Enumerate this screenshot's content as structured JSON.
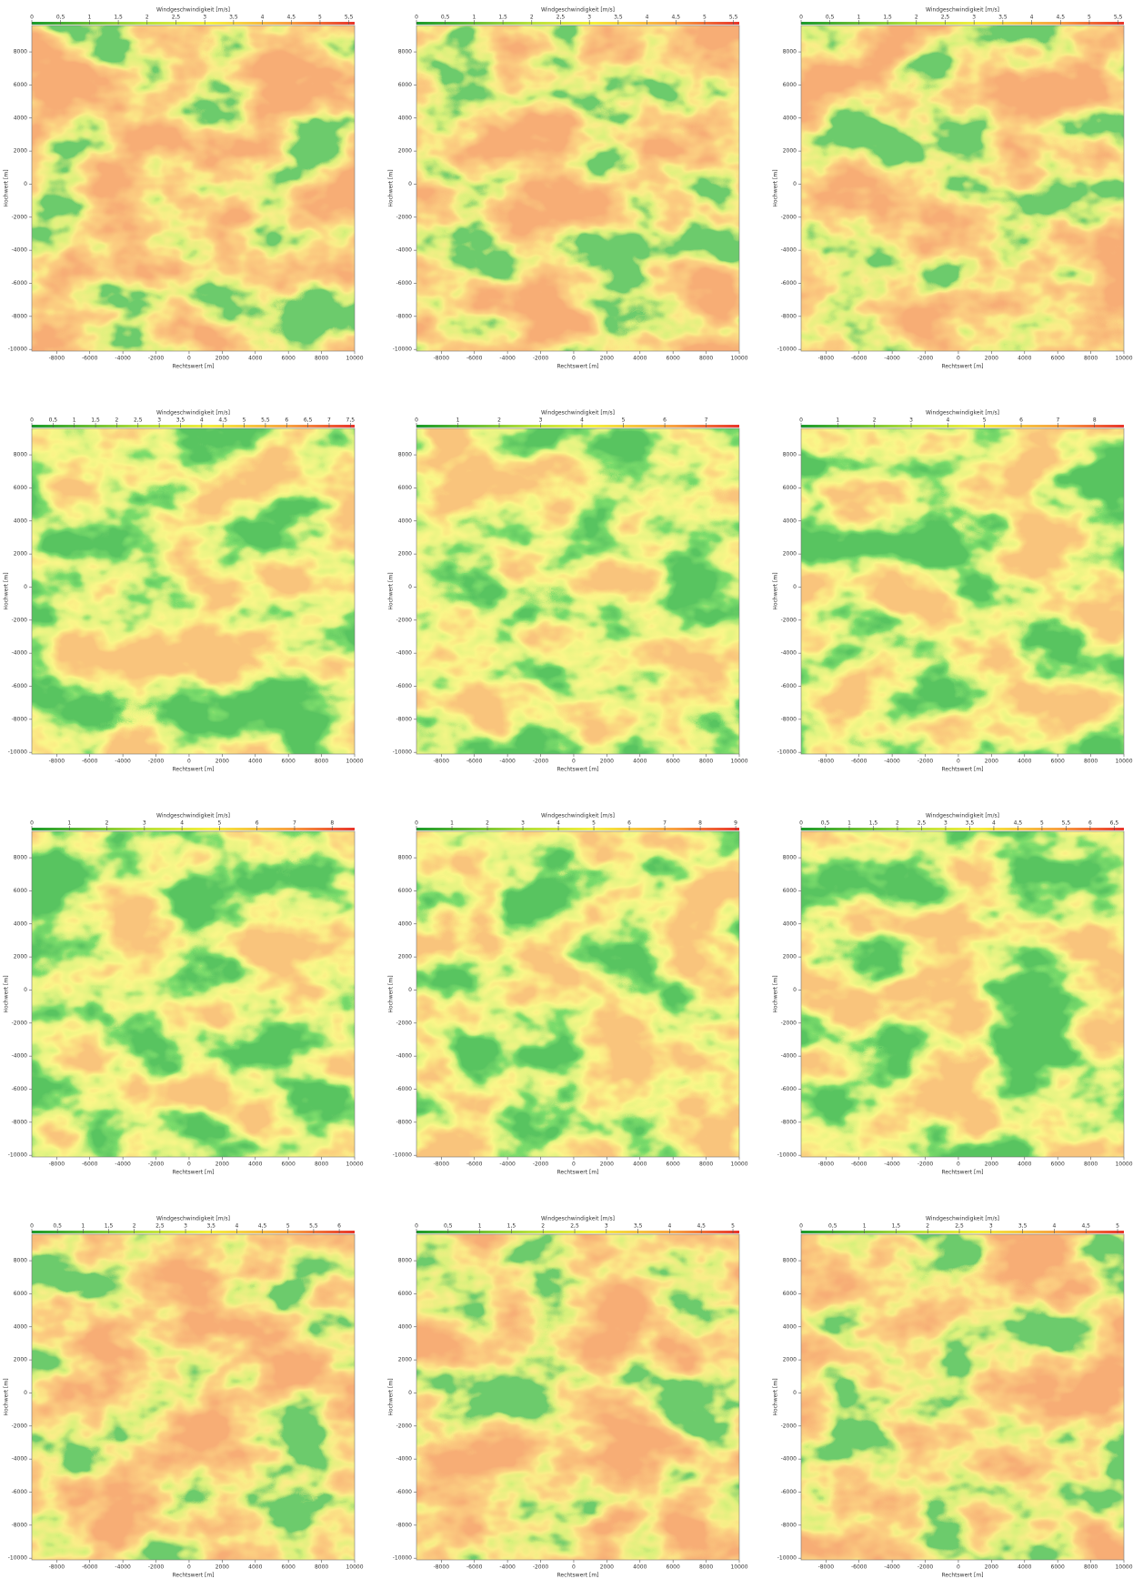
{
  "chart_data": [
    {
      "type": "heatmap",
      "title": "Windgeschwindigkeit [m/s]",
      "xlabel": "Rechtswert [m]",
      "ylabel": "Hochwert [m]",
      "xlim": [
        -9500,
        10000
      ],
      "ylim": [
        -10100,
        9600
      ],
      "xticks": [
        -8000,
        -6000,
        -4000,
        -2000,
        0,
        2000,
        4000,
        6000,
        8000,
        10000
      ],
      "yticks": [
        8000,
        6000,
        4000,
        2000,
        0,
        -2000,
        -4000,
        -6000,
        -8000,
        -10000
      ],
      "clim": [
        0,
        5.6
      ],
      "cticks": [
        0,
        {
          "value": 0.5,
          "label": "0,5"
        },
        1,
        {
          "value": 1.5,
          "label": "1,5"
        },
        2,
        {
          "value": 2.5,
          "label": "2,5"
        },
        3,
        {
          "value": 3.5,
          "label": "3,5"
        },
        4,
        {
          "value": 4.5,
          "label": "4,5"
        },
        5,
        {
          "value": 5.5,
          "label": "5,5"
        }
      ]
    },
    {
      "type": "heatmap",
      "title": "Windgeschwindigkeit [m/s]",
      "xlabel": "Rechtswert [m]",
      "ylabel": "Hochwert [m]",
      "xlim": [
        -9500,
        10000
      ],
      "ylim": [
        -10100,
        9600
      ],
      "xticks": [
        -8000,
        -6000,
        -4000,
        -2000,
        0,
        2000,
        4000,
        6000,
        8000,
        10000
      ],
      "yticks": [
        8000,
        6000,
        4000,
        2000,
        0,
        -2000,
        -4000,
        -6000,
        -8000,
        -10000
      ],
      "clim": [
        0,
        5.6
      ],
      "cticks": [
        0,
        {
          "value": 0.5,
          "label": "0,5"
        },
        1,
        {
          "value": 1.5,
          "label": "1,5"
        },
        2,
        {
          "value": 2.5,
          "label": "2,5"
        },
        3,
        {
          "value": 3.5,
          "label": "3,5"
        },
        4,
        {
          "value": 4.5,
          "label": "4,5"
        },
        5,
        {
          "value": 5.5,
          "label": "5,5"
        }
      ]
    },
    {
      "type": "heatmap",
      "title": "Windgeschwindigkeit [m/s]",
      "xlabel": "Rechtswert [m]",
      "ylabel": "Hochwert [m]",
      "xlim": [
        -9500,
        10000
      ],
      "ylim": [
        -10100,
        9600
      ],
      "xticks": [
        -8000,
        -6000,
        -4000,
        -2000,
        0,
        2000,
        4000,
        6000,
        8000,
        10000
      ],
      "yticks": [
        8000,
        6000,
        4000,
        2000,
        0,
        -2000,
        -4000,
        -6000,
        -8000,
        -10000
      ],
      "clim": [
        0,
        5.6
      ],
      "cticks": [
        0,
        {
          "value": 0.5,
          "label": "0,5"
        },
        1,
        {
          "value": 1.5,
          "label": "1,5"
        },
        2,
        {
          "value": 2.5,
          "label": "2,5"
        },
        3,
        {
          "value": 3.5,
          "label": "3,5"
        },
        4,
        {
          "value": 4.5,
          "label": "4,5"
        },
        5,
        {
          "value": 5.5,
          "label": "5,5"
        }
      ]
    },
    {
      "type": "heatmap",
      "title": "Windgeschwindigkeit [m/s]",
      "xlabel": "Rechtswert [m]",
      "ylabel": "Hochwert [m]",
      "xlim": [
        -9500,
        10000
      ],
      "ylim": [
        -10100,
        9600
      ],
      "xticks": [
        -8000,
        -6000,
        -4000,
        -2000,
        0,
        2000,
        4000,
        6000,
        8000,
        10000
      ],
      "yticks": [
        8000,
        6000,
        4000,
        2000,
        0,
        -2000,
        -4000,
        -6000,
        -8000,
        -10000
      ],
      "clim": [
        0,
        7.6
      ],
      "cticks": [
        0,
        {
          "value": 0.5,
          "label": "0,5"
        },
        1,
        {
          "value": 1.5,
          "label": "1,5"
        },
        2,
        {
          "value": 2.5,
          "label": "2,5"
        },
        3,
        {
          "value": 3.5,
          "label": "3,5"
        },
        4,
        {
          "value": 4.5,
          "label": "4,5"
        },
        5,
        {
          "value": 5.5,
          "label": "5,5"
        },
        6,
        {
          "value": 6.5,
          "label": "6,5"
        },
        7,
        {
          "value": 7.5,
          "label": "7,5"
        }
      ]
    },
    {
      "type": "heatmap",
      "title": "Windgeschwindigkeit [m/s]",
      "xlabel": "Rechtswert [m]",
      "ylabel": "Hochwert [m]",
      "xlim": [
        -9500,
        10000
      ],
      "ylim": [
        -10100,
        9600
      ],
      "xticks": [
        -8000,
        -6000,
        -4000,
        -2000,
        0,
        2000,
        4000,
        6000,
        8000,
        10000
      ],
      "yticks": [
        8000,
        6000,
        4000,
        2000,
        0,
        -2000,
        -4000,
        -6000,
        -8000,
        -10000
      ],
      "clim": [
        0,
        7.8
      ],
      "cticks": [
        0,
        1,
        2,
        3,
        4,
        5,
        6,
        7
      ]
    },
    {
      "type": "heatmap",
      "title": "Windgeschwindigkeit [m/s]",
      "xlabel": "Rechtswert [m]",
      "ylabel": "Hochwert [m]",
      "xlim": [
        -9500,
        10000
      ],
      "ylim": [
        -10100,
        9600
      ],
      "xticks": [
        -8000,
        -6000,
        -4000,
        -2000,
        0,
        2000,
        4000,
        6000,
        8000,
        10000
      ],
      "yticks": [
        8000,
        6000,
        4000,
        2000,
        0,
        -2000,
        -4000,
        -6000,
        -8000,
        -10000
      ],
      "clim": [
        0,
        8.8
      ],
      "cticks": [
        0,
        1,
        2,
        3,
        4,
        5,
        6,
        7,
        8
      ]
    },
    {
      "type": "heatmap",
      "title": "Windgeschwindigkeit [m/s]",
      "xlabel": "Rechtswert [m]",
      "ylabel": "Hochwert [m]",
      "xlim": [
        -9500,
        10000
      ],
      "ylim": [
        -10100,
        9600
      ],
      "xticks": [
        -8000,
        -6000,
        -4000,
        -2000,
        0,
        2000,
        4000,
        6000,
        8000,
        10000
      ],
      "yticks": [
        8000,
        6000,
        4000,
        2000,
        0,
        -2000,
        -4000,
        -6000,
        -8000,
        -10000
      ],
      "clim": [
        0,
        8.6
      ],
      "cticks": [
        0,
        1,
        2,
        3,
        4,
        5,
        6,
        7,
        8
      ]
    },
    {
      "type": "heatmap",
      "title": "Windgeschwindigkeit [m/s]",
      "xlabel": "Rechtswert [m]",
      "ylabel": "Hochwert [m]",
      "xlim": [
        -9500,
        10000
      ],
      "ylim": [
        -10100,
        9600
      ],
      "xticks": [
        -8000,
        -6000,
        -4000,
        -2000,
        0,
        2000,
        4000,
        6000,
        8000,
        10000
      ],
      "yticks": [
        8000,
        6000,
        4000,
        2000,
        0,
        -2000,
        -4000,
        -6000,
        -8000,
        -10000
      ],
      "clim": [
        0,
        9.1
      ],
      "cticks": [
        0,
        1,
        2,
        3,
        4,
        5,
        6,
        7,
        8,
        9
      ]
    },
    {
      "type": "heatmap",
      "title": "Windgeschwindigkeit [m/s]",
      "xlabel": "Rechtswert [m]",
      "ylabel": "Hochwert [m]",
      "xlim": [
        -9500,
        10000
      ],
      "ylim": [
        -10100,
        9600
      ],
      "xticks": [
        -8000,
        -6000,
        -4000,
        -2000,
        0,
        2000,
        4000,
        6000,
        8000,
        10000
      ],
      "yticks": [
        8000,
        6000,
        4000,
        2000,
        0,
        -2000,
        -4000,
        -6000,
        -8000,
        -10000
      ],
      "clim": [
        0,
        6.7
      ],
      "cticks": [
        0,
        {
          "value": 0.5,
          "label": "0,5"
        },
        1,
        {
          "value": 1.5,
          "label": "1,5"
        },
        2,
        {
          "value": 2.5,
          "label": "2,5"
        },
        3,
        {
          "value": 3.5,
          "label": "3,5"
        },
        4,
        {
          "value": 4.5,
          "label": "4,5"
        },
        5,
        {
          "value": 5.5,
          "label": "5,5"
        },
        6,
        {
          "value": 6.5,
          "label": "6,5"
        }
      ]
    },
    {
      "type": "heatmap",
      "title": "Windgeschwindigkeit [m/s]",
      "xlabel": "Rechtswert [m]",
      "ylabel": "Hochwert [m]",
      "xlim": [
        -9500,
        10000
      ],
      "ylim": [
        -10100,
        9600
      ],
      "xticks": [
        -8000,
        -6000,
        -4000,
        -2000,
        0,
        2000,
        4000,
        6000,
        8000,
        10000
      ],
      "yticks": [
        8000,
        6000,
        4000,
        2000,
        0,
        -2000,
        -4000,
        -6000,
        -8000,
        -10000
      ],
      "clim": [
        0,
        6.3
      ],
      "cticks": [
        0,
        {
          "value": 0.5,
          "label": "0,5"
        },
        1,
        {
          "value": 1.5,
          "label": "1,5"
        },
        2,
        {
          "value": 2.5,
          "label": "2,5"
        },
        3,
        {
          "value": 3.5,
          "label": "3,5"
        },
        4,
        {
          "value": 4.5,
          "label": "4,5"
        },
        5,
        {
          "value": 5.5,
          "label": "5,5"
        },
        6
      ]
    },
    {
      "type": "heatmap",
      "title": "Windgeschwindigkeit [m/s]",
      "xlabel": "Rechtswert [m]",
      "ylabel": "Hochwert [m]",
      "xlim": [
        -9500,
        10000
      ],
      "ylim": [
        -10100,
        9600
      ],
      "xticks": [
        -8000,
        -6000,
        -4000,
        -2000,
        0,
        2000,
        4000,
        6000,
        8000,
        10000
      ],
      "yticks": [
        8000,
        6000,
        4000,
        2000,
        0,
        -2000,
        -4000,
        -6000,
        -8000,
        -10000
      ],
      "clim": [
        0,
        5.1
      ],
      "cticks": [
        0,
        {
          "value": 0.5,
          "label": "0,5"
        },
        1,
        {
          "value": 1.5,
          "label": "1,5"
        },
        2,
        {
          "value": 2.5,
          "label": "2,5"
        },
        3,
        {
          "value": 3.5,
          "label": "3,5"
        },
        4,
        {
          "value": 4.5,
          "label": "4,5"
        },
        5
      ]
    },
    {
      "type": "heatmap",
      "title": "Windgeschwindigkeit [m/s]",
      "xlabel": "Rechtswert [m]",
      "ylabel": "Hochwert [m]",
      "xlim": [
        -9500,
        10000
      ],
      "ylim": [
        -10100,
        9600
      ],
      "xticks": [
        -8000,
        -6000,
        -4000,
        -2000,
        0,
        2000,
        4000,
        6000,
        8000,
        10000
      ],
      "yticks": [
        8000,
        6000,
        4000,
        2000,
        0,
        -2000,
        -4000,
        -6000,
        -8000,
        -10000
      ],
      "clim": [
        0,
        5.1
      ],
      "cticks": [
        0,
        {
          "value": 0.5,
          "label": "0,5"
        },
        1,
        {
          "value": 1.5,
          "label": "1,5"
        },
        2,
        {
          "value": 2.5,
          "label": "2,5"
        },
        3,
        {
          "value": 3.5,
          "label": "3,5"
        },
        4,
        {
          "value": 4.5,
          "label": "4,5"
        },
        5
      ]
    }
  ]
}
